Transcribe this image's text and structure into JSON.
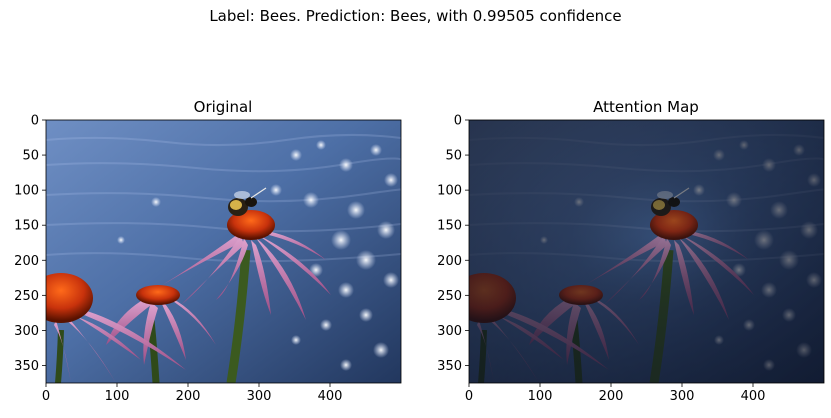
{
  "figure": {
    "suptitle": "Label: Bees. Prediction: Bees, with 0.99505 confidence"
  },
  "panels": [
    {
      "title": "Original",
      "image": "bee-on-coneflower-photo",
      "overlay": "none",
      "x_ticks": [
        "0",
        "100",
        "200",
        "300",
        "400"
      ],
      "y_ticks": [
        "0",
        "50",
        "100",
        "150",
        "200",
        "250",
        "300",
        "350"
      ]
    },
    {
      "title": "Attention Map",
      "image": "bee-on-coneflower-photo",
      "overlay": "attention-darkening",
      "x_ticks": [
        "0",
        "100",
        "200",
        "300",
        "400"
      ],
      "y_ticks": [
        "0",
        "50",
        "100",
        "150",
        "200",
        "250",
        "300",
        "350"
      ]
    }
  ]
}
